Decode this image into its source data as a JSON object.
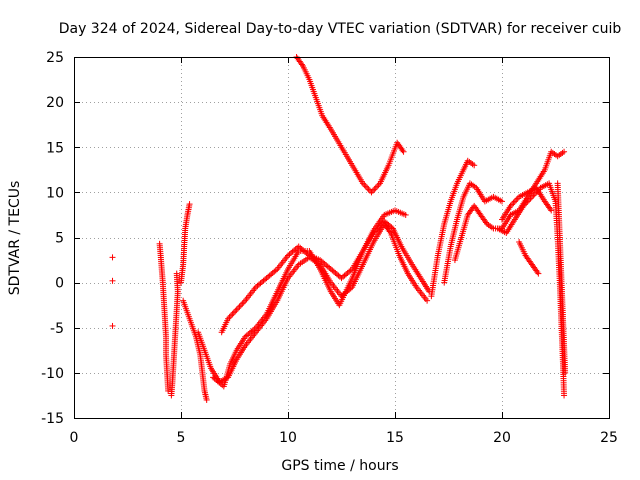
{
  "chart_data": {
    "type": "scatter",
    "title": "Day 324 of 2024, Sidereal Day-to-day VTEC variation (SDTVAR) for receiver cuib",
    "xlabel": "GPS time / hours",
    "ylabel": "SDTVAR / TECUs",
    "xlim": [
      0,
      25
    ],
    "ylim": [
      -15,
      25
    ],
    "xticks": [
      0,
      5,
      10,
      15,
      20,
      25
    ],
    "yticks": [
      -15,
      -10,
      -5,
      0,
      5,
      10,
      15,
      20,
      25
    ],
    "xtick_labels": [
      "0",
      "5",
      "10",
      "15",
      "20",
      "25"
    ],
    "ytick_labels": [
      "-15",
      "-10",
      "-5",
      "0",
      "5",
      "10",
      "15",
      "20",
      "25"
    ],
    "grid": true,
    "marker": "+",
    "marker_color": "#ff0000",
    "series": [
      {
        "name": "isolated-early",
        "points": [
          [
            1.8,
            2.8
          ],
          [
            1.8,
            0.2
          ],
          [
            1.8,
            -4.8
          ]
        ]
      },
      {
        "name": "arc-a-vertical",
        "points": [
          [
            4.0,
            4.3
          ],
          [
            4.05,
            3.0
          ],
          [
            4.1,
            1.5
          ],
          [
            4.15,
            0.0
          ],
          [
            4.2,
            -2.0
          ],
          [
            4.25,
            -4.0
          ],
          [
            4.3,
            -6.0
          ],
          [
            4.3,
            -8.0
          ],
          [
            4.35,
            -10.0
          ],
          [
            4.4,
            -12.0
          ]
        ]
      },
      {
        "name": "arc-b-vertical",
        "points": [
          [
            4.8,
            1.0
          ],
          [
            4.85,
            -1.0
          ],
          [
            4.8,
            -3.0
          ],
          [
            4.75,
            -5.0
          ],
          [
            4.7,
            -7.0
          ],
          [
            4.65,
            -9.0
          ],
          [
            4.6,
            -11.0
          ],
          [
            4.55,
            -12.5
          ]
        ]
      },
      {
        "name": "arc-c-rising",
        "points": [
          [
            5.0,
            0.0
          ],
          [
            5.1,
            2.0
          ],
          [
            5.15,
            4.0
          ],
          [
            5.2,
            6.0
          ],
          [
            5.3,
            7.5
          ],
          [
            5.4,
            8.7
          ]
        ]
      },
      {
        "name": "arc-d-falling",
        "points": [
          [
            5.1,
            -2.0
          ],
          [
            5.4,
            -4.0
          ],
          [
            5.7,
            -6.0
          ],
          [
            5.9,
            -8.0
          ],
          [
            6.0,
            -10.0
          ],
          [
            6.1,
            -12.0
          ],
          [
            6.2,
            -13.0
          ]
        ]
      },
      {
        "name": "arc-low-1",
        "points": [
          [
            5.8,
            -5.5
          ],
          [
            6.1,
            -7.5
          ],
          [
            6.4,
            -9.5
          ],
          [
            6.8,
            -11.0
          ],
          [
            7.2,
            -10.5
          ],
          [
            7.6,
            -8.5
          ],
          [
            8.0,
            -7.0
          ],
          [
            8.5,
            -5.5
          ],
          [
            9.0,
            -4.0
          ],
          [
            9.5,
            -2.0
          ],
          [
            10.0,
            0.5
          ],
          [
            10.5,
            2.0
          ],
          [
            11.0,
            2.8
          ],
          [
            11.5,
            2.0
          ],
          [
            12.0,
            0.0
          ],
          [
            12.5,
            -1.5
          ],
          [
            13.0,
            -0.5
          ],
          [
            13.5,
            2.0
          ],
          [
            14.0,
            4.5
          ],
          [
            14.5,
            6.5
          ],
          [
            14.8,
            5.5
          ],
          [
            15.2,
            3.0
          ],
          [
            15.6,
            1.0
          ],
          [
            16.0,
            -0.5
          ],
          [
            16.5,
            -2.0
          ]
        ]
      },
      {
        "name": "arc-low-2",
        "points": [
          [
            6.5,
            -10.5
          ],
          [
            7.0,
            -11.5
          ],
          [
            7.3,
            -9.0
          ],
          [
            7.6,
            -7.5
          ],
          [
            8.0,
            -6.0
          ],
          [
            8.5,
            -5.0
          ],
          [
            9.0,
            -3.5
          ],
          [
            9.5,
            -1.0
          ],
          [
            10.0,
            1.5
          ],
          [
            10.5,
            3.5
          ],
          [
            11.0,
            3.5
          ],
          [
            11.5,
            1.5
          ],
          [
            12.0,
            -1.0
          ],
          [
            12.4,
            -2.5
          ],
          [
            13.0,
            0.5
          ],
          [
            13.5,
            3.5
          ],
          [
            14.0,
            5.5
          ],
          [
            14.5,
            6.8
          ],
          [
            14.9,
            6.0
          ],
          [
            15.3,
            4.0
          ],
          [
            15.8,
            2.0
          ],
          [
            16.2,
            0.5
          ],
          [
            16.6,
            -1.0
          ]
        ]
      },
      {
        "name": "arc-low-3",
        "points": [
          [
            6.9,
            -5.5
          ],
          [
            7.2,
            -4.0
          ],
          [
            7.6,
            -3.0
          ],
          [
            8.0,
            -2.0
          ],
          [
            8.5,
            -0.5
          ],
          [
            9.0,
            0.5
          ],
          [
            9.5,
            1.5
          ],
          [
            10.0,
            3.0
          ],
          [
            10.5,
            4.0
          ],
          [
            11.0,
            3.0
          ],
          [
            11.5,
            2.5
          ],
          [
            12.0,
            1.5
          ],
          [
            12.5,
            0.5
          ],
          [
            13.0,
            1.5
          ],
          [
            13.5,
            3.5
          ],
          [
            14.0,
            5.8
          ],
          [
            14.5,
            7.5
          ],
          [
            15.0,
            8.0
          ],
          [
            15.5,
            7.5
          ]
        ]
      },
      {
        "name": "arc-high",
        "points": [
          [
            10.4,
            25.0
          ],
          [
            10.7,
            24.0
          ],
          [
            11.0,
            22.5
          ],
          [
            11.3,
            20.5
          ],
          [
            11.6,
            18.5
          ],
          [
            12.0,
            17.0
          ],
          [
            12.5,
            15.0
          ],
          [
            13.0,
            13.0
          ],
          [
            13.5,
            11.0
          ],
          [
            13.9,
            10.0
          ],
          [
            14.3,
            11.0
          ],
          [
            14.7,
            13.0
          ],
          [
            15.1,
            15.5
          ],
          [
            15.4,
            14.5
          ]
        ]
      },
      {
        "name": "arc-late-1",
        "points": [
          [
            16.7,
            -1.5
          ],
          [
            17.0,
            3.0
          ],
          [
            17.3,
            6.5
          ],
          [
            17.6,
            9.0
          ],
          [
            17.9,
            11.0
          ],
          [
            18.2,
            12.5
          ],
          [
            18.4,
            13.5
          ],
          [
            18.7,
            13.0
          ]
        ]
      },
      {
        "name": "arc-late-2",
        "points": [
          [
            17.3,
            0.0
          ],
          [
            17.6,
            4.0
          ],
          [
            17.9,
            7.0
          ],
          [
            18.2,
            9.5
          ],
          [
            18.5,
            11.0
          ],
          [
            18.8,
            10.5
          ],
          [
            19.2,
            9.0
          ],
          [
            19.6,
            9.5
          ],
          [
            20.0,
            9.0
          ]
        ]
      },
      {
        "name": "arc-late-3",
        "points": [
          [
            17.8,
            2.5
          ],
          [
            18.1,
            5.0
          ],
          [
            18.4,
            7.5
          ],
          [
            18.7,
            8.5
          ],
          [
            19.0,
            7.5
          ],
          [
            19.3,
            6.5
          ],
          [
            19.6,
            6.0
          ],
          [
            20.0,
            6.0
          ],
          [
            20.4,
            7.5
          ],
          [
            20.8,
            8.0
          ],
          [
            21.2,
            9.5
          ],
          [
            21.6,
            11.0
          ],
          [
            22.0,
            12.5
          ],
          [
            22.3,
            14.5
          ],
          [
            22.6,
            14.0
          ],
          [
            22.9,
            14.5
          ]
        ]
      },
      {
        "name": "arc-late-4",
        "points": [
          [
            20.0,
            7.0
          ],
          [
            20.4,
            8.5
          ],
          [
            20.8,
            9.5
          ],
          [
            21.2,
            10.0
          ],
          [
            21.6,
            10.5
          ],
          [
            22.0,
            9.0
          ],
          [
            22.3,
            8.0
          ]
        ]
      },
      {
        "name": "arc-late-5",
        "points": [
          [
            20.8,
            4.5
          ],
          [
            21.1,
            3.0
          ],
          [
            21.4,
            2.0
          ],
          [
            21.7,
            1.0
          ]
        ]
      },
      {
        "name": "arc-late-6",
        "points": [
          [
            19.8,
            6.0
          ],
          [
            20.2,
            5.5
          ],
          [
            20.6,
            7.0
          ],
          [
            21.0,
            8.5
          ],
          [
            21.4,
            9.5
          ],
          [
            21.8,
            10.5
          ],
          [
            22.2,
            11.0
          ],
          [
            22.5,
            9.0
          ],
          [
            22.6,
            5.0
          ],
          [
            22.7,
            0.0
          ],
          [
            22.75,
            -3.0
          ],
          [
            22.8,
            -6.0
          ],
          [
            22.85,
            -9.0
          ],
          [
            22.9,
            -12.5
          ]
        ]
      },
      {
        "name": "arc-late-7",
        "points": [
          [
            22.6,
            11.0
          ],
          [
            22.65,
            8.0
          ],
          [
            22.7,
            5.0
          ],
          [
            22.75,
            2.0
          ],
          [
            22.8,
            -1.0
          ],
          [
            22.85,
            -4.0
          ],
          [
            22.9,
            -7.0
          ],
          [
            22.95,
            -10.0
          ]
        ]
      }
    ]
  }
}
